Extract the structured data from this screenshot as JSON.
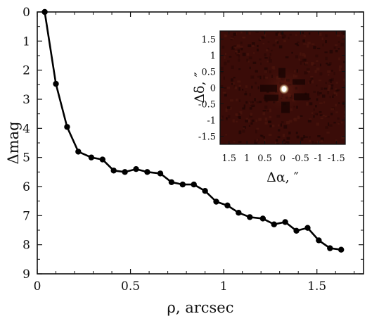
{
  "chart_data": {
    "type": "line",
    "xlabel": "ρ, arcsec",
    "ylabel": "Δmag",
    "xlim": [
      0,
      1.75
    ],
    "ylim": [
      9,
      0
    ],
    "y_inverted": true,
    "x_ticks": [
      0,
      0.5,
      1,
      1.5
    ],
    "x_tick_labels": [
      "0",
      "0.5",
      "1",
      "1.5"
    ],
    "y_ticks": [
      0,
      1,
      2,
      3,
      4,
      5,
      6,
      7,
      8,
      9
    ],
    "y_tick_labels": [
      "0",
      "1",
      "2",
      "3",
      "4",
      "5",
      "6",
      "7",
      "8",
      "9"
    ],
    "grid": false,
    "series": [
      {
        "color": "#000000",
        "marker": "circle",
        "points": [
          {
            "x": 0.04,
            "y": 0.0
          },
          {
            "x": 0.1,
            "y": 2.47
          },
          {
            "x": 0.16,
            "y": 3.95
          },
          {
            "x": 0.22,
            "y": 4.8
          },
          {
            "x": 0.29,
            "y": 5.0
          },
          {
            "x": 0.35,
            "y": 5.07
          },
          {
            "x": 0.41,
            "y": 5.45
          },
          {
            "x": 0.47,
            "y": 5.5
          },
          {
            "x": 0.53,
            "y": 5.4
          },
          {
            "x": 0.59,
            "y": 5.5
          },
          {
            "x": 0.66,
            "y": 5.55
          },
          {
            "x": 0.72,
            "y": 5.85
          },
          {
            "x": 0.78,
            "y": 5.93
          },
          {
            "x": 0.84,
            "y": 5.93
          },
          {
            "x": 0.9,
            "y": 6.15
          },
          {
            "x": 0.96,
            "y": 6.52
          },
          {
            "x": 1.02,
            "y": 6.65
          },
          {
            "x": 1.08,
            "y": 6.9
          },
          {
            "x": 1.14,
            "y": 7.05
          },
          {
            "x": 1.21,
            "y": 7.1
          },
          {
            "x": 1.27,
            "y": 7.3
          },
          {
            "x": 1.33,
            "y": 7.22
          },
          {
            "x": 1.39,
            "y": 7.52
          },
          {
            "x": 1.45,
            "y": 7.42
          },
          {
            "x": 1.51,
            "y": 7.85
          },
          {
            "x": 1.57,
            "y": 8.12
          },
          {
            "x": 1.63,
            "y": 8.17
          }
        ]
      }
    ],
    "inset": {
      "type": "heatmap",
      "description_colors": {
        "background": "#3a0c08",
        "peak": "#ffffff"
      },
      "xlabel": "Δα, ″",
      "ylabel": "Δδ, ″",
      "xlim": [
        1.75,
        -1.75
      ],
      "ylim": [
        -1.75,
        1.75
      ],
      "x_ticks": [
        1.5,
        1,
        0.5,
        0,
        -0.5,
        -1,
        -1.5
      ],
      "x_tick_labels": [
        "1.5",
        "1",
        "0.5",
        "0",
        "-0.5",
        "-1",
        "-1.5"
      ],
      "y_ticks": [
        1.5,
        1,
        0.5,
        0,
        -0.5,
        -1,
        -1.5
      ],
      "y_tick_labels": [
        "1.5",
        "1",
        "0.5",
        "0",
        "-0.5",
        "-1",
        "-1.5"
      ]
    }
  }
}
